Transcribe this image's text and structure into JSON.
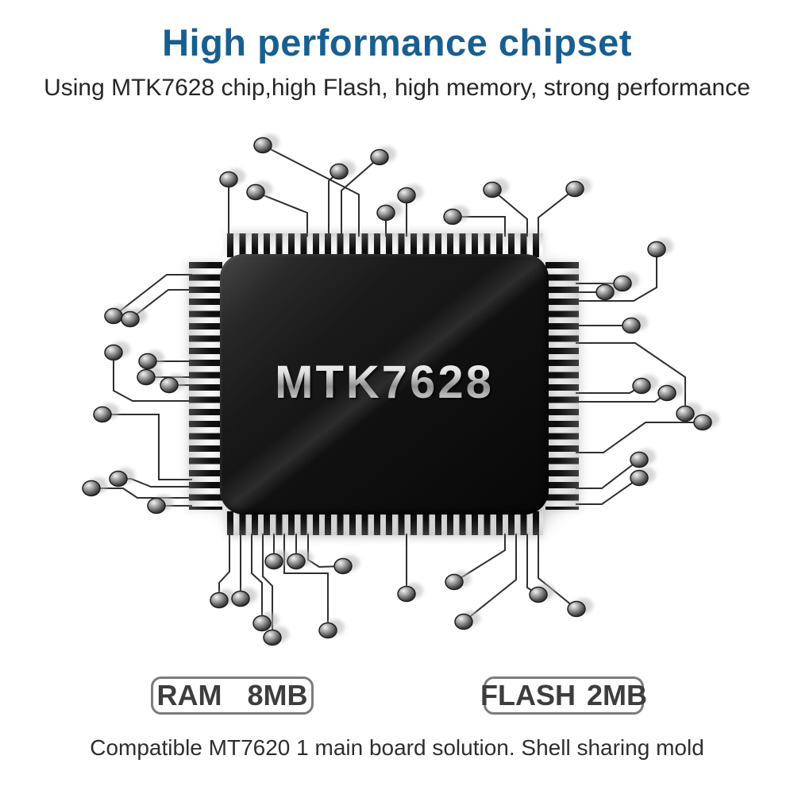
{
  "header": {
    "title": "High performance chipset",
    "subtitle": "Using MTK7628 chip,high Flash, high memory, strong performance"
  },
  "chip": {
    "label": "MTK7628"
  },
  "badges": [
    {
      "name": "RAM",
      "value": "8MB"
    },
    {
      "name": "FLASH",
      "value": "2MB"
    }
  ],
  "footer": {
    "caption": "Compatible MT7620 1 main board solution. Shell sharing mold"
  },
  "colors": {
    "title_blue": "#175f90",
    "body_text": "#262626",
    "badge_text": "#3d3d3d",
    "badge_border": "#7c7c7c",
    "chip_black": "#0d0d0d",
    "chip_label_silver": "#c0c0c0",
    "trace_line": "#2f2f2f"
  },
  "illustration": {
    "traces": [
      [
        [
          288,
          298
        ],
        [
          288,
          226
        ]
      ],
      [
        [
          387,
          298
        ],
        [
          387,
          268
        ],
        [
          322,
          242
        ]
      ],
      [
        [
          452,
          298
        ],
        [
          452,
          245
        ],
        [
          331,
          183
        ]
      ],
      [
        [
          414,
          298
        ],
        [
          414,
          228
        ],
        [
          427,
          216
        ]
      ],
      [
        [
          430,
          298
        ],
        [
          430,
          240
        ],
        [
          478,
          198
        ]
      ],
      [
        [
          486,
          298
        ],
        [
          486,
          268
        ]
      ],
      [
        [
          512,
          298
        ],
        [
          512,
          246
        ]
      ],
      [
        [
          636,
          298
        ],
        [
          636,
          273
        ],
        [
          570,
          273
        ]
      ],
      [
        [
          664,
          298
        ],
        [
          664,
          276
        ],
        [
          620,
          239
        ]
      ],
      [
        [
          678,
          298
        ],
        [
          678,
          274
        ],
        [
          724,
          238
        ]
      ],
      [
        [
          242,
          346
        ],
        [
          210,
          346
        ],
        [
          143,
          398
        ]
      ],
      [
        [
          242,
          365
        ],
        [
          212,
          365
        ],
        [
          164,
          402
        ]
      ],
      [
        [
          242,
          455
        ],
        [
          186,
          455
        ]
      ],
      [
        [
          242,
          475
        ],
        [
          184,
          475
        ]
      ],
      [
        [
          242,
          485
        ],
        [
          213,
          485
        ]
      ],
      [
        [
          242,
          505
        ],
        [
          167,
          505
        ],
        [
          143,
          492
        ],
        [
          143,
          444
        ]
      ],
      [
        [
          242,
          604
        ],
        [
          200,
          604
        ],
        [
          200,
          522
        ],
        [
          129,
          522
        ]
      ],
      [
        [
          242,
          613
        ],
        [
          190,
          613
        ],
        [
          165,
          603
        ],
        [
          149,
          603
        ]
      ],
      [
        [
          242,
          627
        ],
        [
          173,
          627
        ],
        [
          155,
          615
        ],
        [
          115,
          615
        ]
      ],
      [
        [
          242,
          637
        ],
        [
          197,
          637
        ]
      ],
      [
        [
          725,
          379
        ],
        [
          798,
          379
        ],
        [
          827,
          362
        ],
        [
          827,
          314
        ]
      ],
      [
        [
          725,
          357
        ],
        [
          784,
          357
        ]
      ],
      [
        [
          725,
          368
        ],
        [
          762,
          368
        ]
      ],
      [
        [
          725,
          410
        ],
        [
          795,
          410
        ]
      ],
      [
        [
          725,
          432
        ],
        [
          800,
          432
        ],
        [
          863,
          475
        ],
        [
          863,
          521
        ]
      ],
      [
        [
          725,
          495
        ],
        [
          793,
          495
        ],
        [
          808,
          486
        ]
      ],
      [
        [
          725,
          506
        ],
        [
          825,
          506
        ],
        [
          840,
          495
        ]
      ],
      [
        [
          725,
          570
        ],
        [
          760,
          570
        ],
        [
          813,
          532
        ],
        [
          885,
          532
        ]
      ],
      [
        [
          725,
          615
        ],
        [
          758,
          615
        ],
        [
          805,
          579
        ]
      ],
      [
        [
          725,
          635
        ],
        [
          758,
          635
        ],
        [
          805,
          602
        ]
      ],
      [
        [
          289,
          672
        ],
        [
          289,
          720
        ],
        [
          276,
          734
        ],
        [
          276,
          756
        ]
      ],
      [
        [
          303,
          672
        ],
        [
          303,
          754
        ]
      ],
      [
        [
          317,
          672
        ],
        [
          317,
          722
        ],
        [
          330,
          734
        ],
        [
          330,
          785
        ]
      ],
      [
        [
          331,
          672
        ],
        [
          331,
          726
        ],
        [
          343,
          738
        ],
        [
          343,
          803
        ]
      ],
      [
        [
          345,
          672
        ],
        [
          345,
          707
        ]
      ],
      [
        [
          358,
          672
        ],
        [
          358,
          722
        ],
        [
          413,
          722
        ],
        [
          413,
          794
        ]
      ],
      [
        [
          373,
          672
        ],
        [
          373,
          707
        ]
      ],
      [
        [
          388,
          672
        ],
        [
          388,
          705
        ],
        [
          402,
          714
        ],
        [
          432,
          713
        ]
      ],
      [
        [
          512,
          672
        ],
        [
          512,
          748
        ]
      ],
      [
        [
          636,
          672
        ],
        [
          636,
          693
        ],
        [
          572,
          733
        ]
      ],
      [
        [
          650,
          672
        ],
        [
          650,
          730
        ],
        [
          584,
          783
        ]
      ],
      [
        [
          664,
          672
        ],
        [
          664,
          740
        ],
        [
          678,
          749
        ]
      ],
      [
        [
          678,
          672
        ],
        [
          678,
          728
        ],
        [
          726,
          767
        ]
      ]
    ]
  }
}
